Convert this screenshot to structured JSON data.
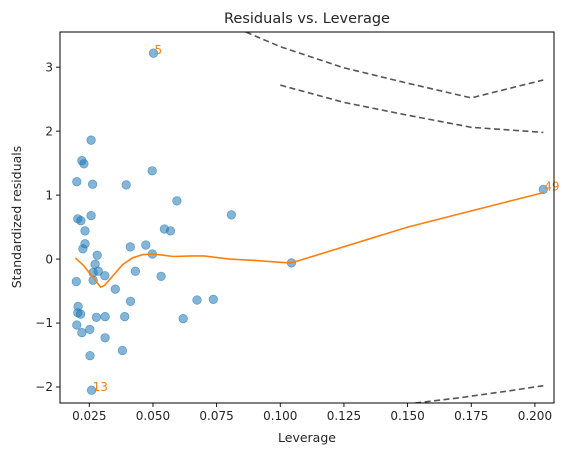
{
  "chart_data": {
    "type": "scatter",
    "title": "Residuals vs. Leverage",
    "xlabel": "Leverage",
    "ylabel": "Standardized residuals",
    "xlim": [
      0.0135,
      0.2075
    ],
    "ylim": [
      -2.25,
      3.55
    ],
    "xticks": [
      0.025,
      0.05,
      0.075,
      0.1,
      0.125,
      0.15,
      0.175,
      0.2
    ],
    "xtick_labels": [
      "0.025",
      "0.050",
      "0.075",
      "0.100",
      "0.125",
      "0.150",
      "0.175",
      "0.200"
    ],
    "yticks": [
      -2,
      -1,
      0,
      1,
      2,
      3
    ],
    "ytick_labels": [
      "−2",
      "−1",
      "0",
      "1",
      "2",
      "3"
    ],
    "grid": false,
    "colors": {
      "points": "#1f77b4",
      "smooth": "#ff7f0e",
      "annotation": "#ff7f0e",
      "cooks": "#555555"
    },
    "points": [
      [
        0.0502,
        3.22
      ],
      [
        0.0257,
        1.86
      ],
      [
        0.0221,
        1.54
      ],
      [
        0.0229,
        1.49
      ],
      [
        0.0497,
        1.38
      ],
      [
        0.0201,
        1.21
      ],
      [
        0.0263,
        1.17
      ],
      [
        0.0395,
        1.16
      ],
      [
        0.0594,
        0.91
      ],
      [
        0.0808,
        0.69
      ],
      [
        0.0257,
        0.68
      ],
      [
        0.0205,
        0.63
      ],
      [
        0.0217,
        0.6
      ],
      [
        0.0545,
        0.47
      ],
      [
        0.0569,
        0.44
      ],
      [
        0.0233,
        0.44
      ],
      [
        0.0233,
        0.24
      ],
      [
        0.0472,
        0.22
      ],
      [
        0.0411,
        0.19
      ],
      [
        0.0225,
        0.16
      ],
      [
        0.0498,
        0.08
      ],
      [
        0.0281,
        0.06
      ],
      [
        0.1044,
        -0.06
      ],
      [
        0.0273,
        -0.08
      ],
      [
        0.0265,
        -0.21
      ],
      [
        0.0431,
        -0.19
      ],
      [
        0.0285,
        -0.19
      ],
      [
        0.0311,
        -0.26
      ],
      [
        0.0532,
        -0.27
      ],
      [
        0.0265,
        -0.33
      ],
      [
        0.0199,
        -0.35
      ],
      [
        0.0352,
        -0.47
      ],
      [
        0.0412,
        -0.66
      ],
      [
        0.0673,
        -0.64
      ],
      [
        0.0737,
        -0.63
      ],
      [
        0.0206,
        -0.74
      ],
      [
        0.0205,
        -0.84
      ],
      [
        0.0216,
        -0.86
      ],
      [
        0.0312,
        -0.9
      ],
      [
        0.0389,
        -0.9
      ],
      [
        0.0278,
        -0.91
      ],
      [
        0.0619,
        -0.93
      ],
      [
        0.0201,
        -1.03
      ],
      [
        0.0252,
        -1.1
      ],
      [
        0.0221,
        -1.15
      ],
      [
        0.0312,
        -1.23
      ],
      [
        0.038,
        -1.43
      ],
      [
        0.0253,
        -1.51
      ],
      [
        0.0259,
        -2.05
      ],
      [
        0.2033,
        1.09
      ]
    ],
    "smooth_line": [
      [
        0.0195,
        0.02
      ],
      [
        0.0225,
        -0.09
      ],
      [
        0.026,
        -0.26
      ],
      [
        0.0295,
        -0.44
      ],
      [
        0.031,
        -0.41
      ],
      [
        0.0345,
        -0.25
      ],
      [
        0.038,
        -0.09
      ],
      [
        0.042,
        0.02
      ],
      [
        0.046,
        0.07
      ],
      [
        0.05,
        0.08
      ],
      [
        0.054,
        0.06
      ],
      [
        0.058,
        0.04
      ],
      [
        0.065,
        0.05
      ],
      [
        0.07,
        0.05
      ],
      [
        0.08,
        0.0
      ],
      [
        0.09,
        -0.02
      ],
      [
        0.1,
        -0.05
      ],
      [
        0.1044,
        -0.06
      ],
      [
        0.15,
        0.5
      ],
      [
        0.2033,
        1.04
      ]
    ],
    "cooks_curves": [
      [
        [
          0.0865,
          3.55
        ],
        [
          0.1,
          3.32
        ],
        [
          0.125,
          2.99
        ],
        [
          0.15,
          2.75
        ],
        [
          0.175,
          2.52
        ],
        [
          0.2033,
          2.8
        ]
      ],
      [
        [
          0.1,
          2.72
        ],
        [
          0.125,
          2.45
        ],
        [
          0.15,
          2.25
        ],
        [
          0.175,
          2.06
        ],
        [
          0.2033,
          1.98
        ]
      ],
      [
        [
          0.153,
          -2.25
        ],
        [
          0.17,
          -2.17
        ],
        [
          0.19,
          -2.06
        ],
        [
          0.2033,
          -1.98
        ]
      ]
    ],
    "annotations": [
      {
        "text": "5",
        "x": 0.0502,
        "y": 3.22
      },
      {
        "text": "49",
        "x": 0.2033,
        "y": 1.09
      },
      {
        "text": "13",
        "x": 0.0259,
        "y": -2.05
      }
    ]
  }
}
